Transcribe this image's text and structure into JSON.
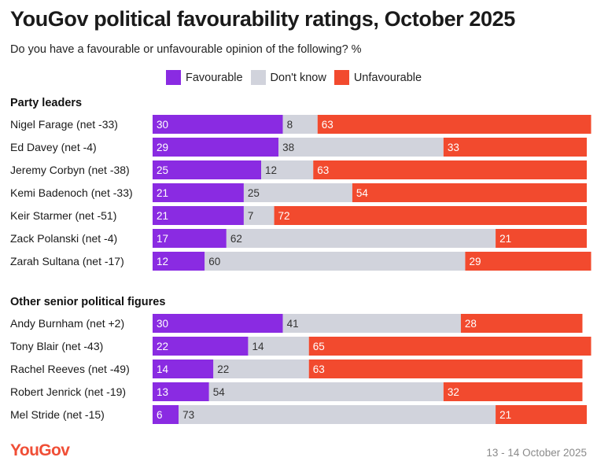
{
  "header": {
    "title": "YouGov political favourability ratings, October 2025",
    "subtitle": "Do you have a favourable or unfavourable opinion of the following? %"
  },
  "footer": {
    "logo": "YouGov",
    "date": "13 - 14 October 2025"
  },
  "colors": {
    "favourable": "#8a2be2",
    "dont_know": "#d1d3dc",
    "unfavourable": "#f24a2e"
  },
  "chart_data": {
    "type": "bar",
    "orientation": "horizontal-stacked",
    "series_names": [
      "Favourable",
      "Don't know",
      "Unfavourable"
    ],
    "groups": [
      {
        "label": "Party leaders",
        "rows": [
          {
            "label": "Nigel Farage (net -33)",
            "values": [
              30,
              8,
              63
            ]
          },
          {
            "label": "Ed Davey (net -4)",
            "values": [
              29,
              38,
              33
            ]
          },
          {
            "label": "Jeremy Corbyn (net -38)",
            "values": [
              25,
              12,
              63
            ]
          },
          {
            "label": "Kemi Badenoch (net -33)",
            "values": [
              21,
              25,
              54
            ]
          },
          {
            "label": "Keir Starmer (net -51)",
            "values": [
              21,
              7,
              72
            ]
          },
          {
            "label": "Zack Polanski (net -4)",
            "values": [
              17,
              62,
              21
            ]
          },
          {
            "label": "Zarah Sultana (net -17)",
            "values": [
              12,
              60,
              29
            ]
          }
        ]
      },
      {
        "label": "Other senior political figures",
        "rows": [
          {
            "label": "Andy Burnham (net +2)",
            "values": [
              30,
              41,
              28
            ]
          },
          {
            "label": "Tony Blair (net -43)",
            "values": [
              22,
              14,
              65
            ]
          },
          {
            "label": "Rachel Reeves (net -49)",
            "values": [
              14,
              22,
              63
            ]
          },
          {
            "label": "Robert Jenrick (net -19)",
            "values": [
              13,
              54,
              32
            ]
          },
          {
            "label": "Mel Stride (net -15)",
            "values": [
              6,
              73,
              21
            ]
          }
        ]
      }
    ]
  }
}
